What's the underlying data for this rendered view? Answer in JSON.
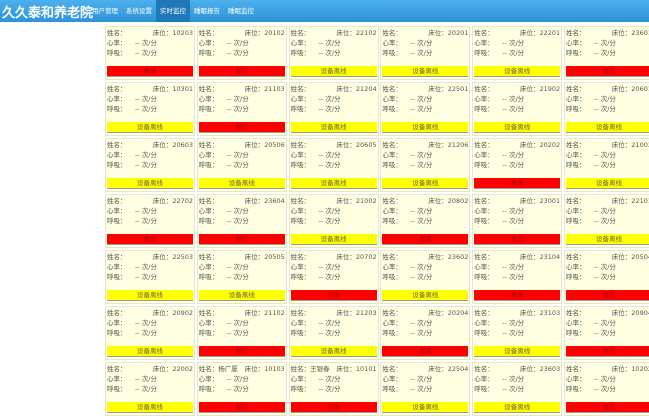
{
  "app": {
    "title": "久久泰和养老院"
  },
  "nav": [
    {
      "label": "用户管理"
    },
    {
      "label": "系统设置"
    },
    {
      "label": "实时监控",
      "active": true
    },
    {
      "label": "睡眠报告"
    },
    {
      "label": "睡眠监控"
    }
  ],
  "labels": {
    "name": "姓名：",
    "bed": "床位：",
    "heart": "心率：",
    "breath": "呼吸：",
    "rate_value": "-- 次/分"
  },
  "statuses": {
    "red": "离床",
    "yellow": "设备离线"
  },
  "colors": {
    "header": "#2e93d8",
    "red": "#ff0000",
    "yellow": "#ffff00",
    "card": "#ffffe2"
  },
  "cards": [
    {
      "name": "",
      "bed": "10203",
      "status": "red"
    },
    {
      "name": "",
      "bed": "20102",
      "status": "red"
    },
    {
      "name": "",
      "bed": "22102",
      "status": "yellow"
    },
    {
      "name": "",
      "bed": "20201",
      "status": "yellow"
    },
    {
      "name": "",
      "bed": "22201",
      "status": "yellow"
    },
    {
      "name": "",
      "bed": "23601",
      "status": "red"
    },
    {
      "name": "",
      "bed": "10301",
      "status": "yellow"
    },
    {
      "name": "",
      "bed": "21103",
      "status": "red"
    },
    {
      "name": "",
      "bed": "21204",
      "status": "yellow"
    },
    {
      "name": "",
      "bed": "22501",
      "status": "yellow"
    },
    {
      "name": "",
      "bed": "21902",
      "status": "yellow"
    },
    {
      "name": "",
      "bed": "20601",
      "status": "yellow"
    },
    {
      "name": "",
      "bed": "20603",
      "status": "yellow"
    },
    {
      "name": "",
      "bed": "20506",
      "status": "yellow"
    },
    {
      "name": "",
      "bed": "20605",
      "status": "yellow"
    },
    {
      "name": "",
      "bed": "21206",
      "status": "yellow"
    },
    {
      "name": "",
      "bed": "20202",
      "status": "red"
    },
    {
      "name": "",
      "bed": "21003",
      "status": "yellow"
    },
    {
      "name": "",
      "bed": "22702",
      "status": "red"
    },
    {
      "name": "",
      "bed": "23604",
      "status": "red"
    },
    {
      "name": "",
      "bed": "21002",
      "status": "yellow"
    },
    {
      "name": "",
      "bed": "20802",
      "status": "red"
    },
    {
      "name": "",
      "bed": "23001",
      "status": "red"
    },
    {
      "name": "",
      "bed": "22101",
      "status": "yellow"
    },
    {
      "name": "",
      "bed": "22503",
      "status": "yellow"
    },
    {
      "name": "",
      "bed": "20505",
      "status": "yellow"
    },
    {
      "name": "",
      "bed": "20702",
      "status": "red"
    },
    {
      "name": "",
      "bed": "23602",
      "status": "yellow"
    },
    {
      "name": "",
      "bed": "23104",
      "status": "red"
    },
    {
      "name": "",
      "bed": "20504",
      "status": "red"
    },
    {
      "name": "",
      "bed": "20902",
      "status": "yellow"
    },
    {
      "name": "",
      "bed": "21102",
      "status": "red"
    },
    {
      "name": "",
      "bed": "21203",
      "status": "yellow"
    },
    {
      "name": "",
      "bed": "20204",
      "status": "red"
    },
    {
      "name": "",
      "bed": "23103",
      "status": "yellow"
    },
    {
      "name": "",
      "bed": "20904",
      "status": "red"
    },
    {
      "name": "",
      "bed": "22002",
      "status": "yellow"
    },
    {
      "name": "杨广厦",
      "bed": "10103",
      "status": "red"
    },
    {
      "name": "王银春",
      "bed": "10101",
      "status": "red"
    },
    {
      "name": "",
      "bed": "22504",
      "status": "yellow"
    },
    {
      "name": "",
      "bed": "23603",
      "status": "yellow"
    },
    {
      "name": "",
      "bed": "10202",
      "status": "red"
    }
  ]
}
